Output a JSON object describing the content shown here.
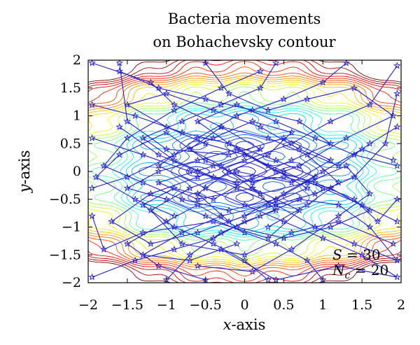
{
  "chart_data": {
    "type": "scatter",
    "title_lines": [
      "Bacteria movements",
      "on Bohachevsky contour"
    ],
    "xlabel": {
      "var": "x",
      "suffix": "-axis"
    },
    "ylabel": {
      "var": "y",
      "suffix": "-axis"
    },
    "xlim": [
      -2,
      2
    ],
    "ylim": [
      -2,
      2
    ],
    "xticks": [
      -2,
      -1.5,
      -1,
      -0.5,
      0,
      0.5,
      1,
      1.5,
      2
    ],
    "yticks": [
      -2,
      -1.5,
      -1,
      -0.5,
      0,
      0.5,
      1,
      1.5,
      2
    ],
    "xtick_labels": [
      "−2",
      "−1.5",
      "−1",
      "−0.5",
      "0",
      "0.5",
      "1",
      "1.5",
      "2"
    ],
    "ytick_labels": [
      "−2",
      "−1.5",
      "−1",
      "−0.5",
      "0",
      "0.5",
      "1",
      "1.5",
      "2"
    ],
    "grid": false,
    "legend": "none",
    "background": "contour",
    "contour_function": "Bohachevsky",
    "contour_colormap": "jet",
    "path_color": "#1f1fd0",
    "marker": "star",
    "annotations": [
      {
        "var": "S",
        "sub": "",
        "text": " = 30",
        "position": "bottom-right"
      },
      {
        "var": "N",
        "sub": "c",
        "text": " = 20",
        "position": "bottom-right"
      }
    ],
    "paths": [
      [
        [
          -1.95,
          1.95
        ],
        [
          -1.2,
          1.6
        ],
        [
          -0.9,
          1.2
        ],
        [
          -0.3,
          0.8
        ],
        [
          0.2,
          0.4
        ],
        [
          -0.4,
          0.1
        ],
        [
          -1.1,
          -0.2
        ],
        [
          -0.6,
          -0.5
        ],
        [
          0.1,
          -0.3
        ],
        [
          0.7,
          -0.7
        ],
        [
          0.3,
          -1.2
        ],
        [
          -0.4,
          -0.9
        ],
        [
          -1.3,
          -1.1
        ],
        [
          -1.8,
          -1.4
        ],
        [
          -1.95,
          -0.8
        ]
      ],
      [
        [
          -1.6,
          1.95
        ],
        [
          -1.5,
          0.9
        ],
        [
          -1.0,
          0.4
        ],
        [
          -0.2,
          0.3
        ],
        [
          0.5,
          0.6
        ],
        [
          1.1,
          0.2
        ],
        [
          0.6,
          -0.2
        ],
        [
          -0.1,
          0.0
        ],
        [
          -0.7,
          -0.3
        ],
        [
          -1.2,
          -0.7
        ],
        [
          -0.8,
          -1.3
        ],
        [
          0.0,
          -1.5
        ],
        [
          0.6,
          -1.1
        ],
        [
          1.2,
          -0.9
        ],
        [
          1.9,
          -1.3
        ]
      ],
      [
        [
          -0.5,
          1.95
        ],
        [
          -0.2,
          1.4
        ],
        [
          0.3,
          1.1
        ],
        [
          0.8,
          1.3
        ],
        [
          1.4,
          1.5
        ],
        [
          1.9,
          1.0
        ],
        [
          1.3,
          0.6
        ],
        [
          0.7,
          0.1
        ],
        [
          0.1,
          -0.2
        ],
        [
          -0.5,
          0.2
        ],
        [
          -1.0,
          0.7
        ],
        [
          -1.6,
          0.3
        ],
        [
          -1.9,
          -0.1
        ],
        [
          -1.4,
          -0.5
        ],
        [
          -0.9,
          -0.8
        ]
      ],
      [
        [
          0.4,
          1.95
        ],
        [
          0.2,
          1.5
        ],
        [
          -0.3,
          1.2
        ],
        [
          -0.8,
          0.9
        ],
        [
          -1.3,
          0.6
        ],
        [
          -0.9,
          0.2
        ],
        [
          -0.4,
          -0.1
        ],
        [
          0.2,
          -0.4
        ],
        [
          0.8,
          -0.2
        ],
        [
          1.3,
          0.1
        ],
        [
          1.6,
          -0.4
        ],
        [
          1.2,
          -0.8
        ],
        [
          0.6,
          -1.4
        ],
        [
          0.1,
          -1.8
        ],
        [
          -0.6,
          -1.7
        ]
      ],
      [
        [
          1.3,
          1.95
        ],
        [
          1.0,
          1.6
        ],
        [
          0.5,
          1.3
        ],
        [
          -0.1,
          1.0
        ],
        [
          -0.6,
          0.6
        ],
        [
          -1.1,
          0.1
        ],
        [
          -0.5,
          -0.3
        ],
        [
          0.0,
          -0.6
        ],
        [
          0.5,
          -0.9
        ],
        [
          1.0,
          -1.2
        ],
        [
          1.5,
          -1.5
        ],
        [
          1.95,
          -1.9
        ],
        [
          1.2,
          -1.7
        ],
        [
          0.4,
          -1.95
        ],
        [
          -0.3,
          -1.4
        ]
      ],
      [
        [
          1.95,
          1.9
        ],
        [
          1.6,
          1.2
        ],
        [
          1.1,
          0.9
        ],
        [
          0.6,
          0.5
        ],
        [
          0.0,
          0.2
        ],
        [
          -0.6,
          -0.1
        ],
        [
          -1.2,
          -0.4
        ],
        [
          -1.7,
          -0.9
        ],
        [
          -1.2,
          -1.3
        ],
        [
          -0.6,
          -1.1
        ],
        [
          0.0,
          -0.8
        ],
        [
          0.5,
          -0.4
        ],
        [
          1.0,
          0.0
        ],
        [
          1.5,
          0.4
        ],
        [
          1.9,
          0.2
        ]
      ],
      [
        [
          -1.95,
          1.2
        ],
        [
          -1.4,
          1.0
        ],
        [
          -0.8,
          0.7
        ],
        [
          -0.2,
          0.5
        ],
        [
          0.4,
          0.2
        ],
        [
          0.9,
          -0.1
        ],
        [
          0.4,
          -0.5
        ],
        [
          -0.2,
          -0.7
        ],
        [
          -0.8,
          -0.5
        ],
        [
          -1.3,
          -0.2
        ],
        [
          -1.8,
          0.1
        ],
        [
          -1.5,
          0.6
        ],
        [
          -0.9,
          1.1
        ],
        [
          -0.3,
          1.5
        ],
        [
          0.2,
          1.8
        ]
      ],
      [
        [
          -1.95,
          0.6
        ],
        [
          -1.3,
          0.3
        ],
        [
          -0.7,
          0.0
        ],
        [
          -0.1,
          -0.2
        ],
        [
          0.5,
          -0.1
        ],
        [
          1.1,
          -0.3
        ],
        [
          1.6,
          -0.7
        ],
        [
          1.1,
          -1.0
        ],
        [
          0.5,
          -1.2
        ],
        [
          -0.1,
          -1.0
        ],
        [
          -0.6,
          -0.6
        ],
        [
          -1.0,
          -0.9
        ],
        [
          -1.5,
          -1.3
        ],
        [
          -1.1,
          -1.7
        ],
        [
          -0.5,
          -1.95
        ]
      ],
      [
        [
          -1.95,
          -0.3
        ],
        [
          -1.5,
          -0.1
        ],
        [
          -0.9,
          0.3
        ],
        [
          -0.4,
          0.6
        ],
        [
          0.1,
          0.9
        ],
        [
          0.6,
          0.7
        ],
        [
          0.3,
          0.3
        ],
        [
          -0.2,
          0.0
        ],
        [
          -0.6,
          -0.4
        ],
        [
          -0.2,
          -0.9
        ],
        [
          0.4,
          -0.6
        ],
        [
          0.9,
          -0.4
        ],
        [
          1.4,
          -0.1
        ],
        [
          1.8,
          0.5
        ],
        [
          1.95,
          1.4
        ]
      ],
      [
        [
          -1.95,
          -1.9
        ],
        [
          -1.4,
          -1.6
        ],
        [
          -0.9,
          -1.4
        ],
        [
          -0.4,
          -1.2
        ],
        [
          0.0,
          -0.9
        ],
        [
          0.4,
          -0.7
        ],
        [
          0.1,
          -0.3
        ],
        [
          -0.3,
          0.1
        ],
        [
          -0.7,
          0.4
        ],
        [
          -0.3,
          0.8
        ],
        [
          0.3,
          0.6
        ],
        [
          0.8,
          0.3
        ],
        [
          1.2,
          -0.2
        ],
        [
          0.8,
          -0.6
        ],
        [
          0.3,
          -1.0
        ]
      ],
      [
        [
          -1.0,
          -1.95
        ],
        [
          -0.7,
          -1.5
        ],
        [
          -0.3,
          -1.1
        ],
        [
          0.2,
          -0.8
        ],
        [
          0.7,
          -0.5
        ],
        [
          1.2,
          -0.6
        ],
        [
          1.6,
          -1.0
        ],
        [
          1.95,
          -1.6
        ],
        [
          1.4,
          -1.3
        ],
        [
          0.9,
          -1.0
        ],
        [
          0.4,
          -0.6
        ],
        [
          -0.1,
          -0.3
        ],
        [
          -0.6,
          0.0
        ],
        [
          -1.1,
          0.3
        ],
        [
          -1.6,
          0.8
        ]
      ],
      [
        [
          0.3,
          -1.95
        ],
        [
          0.0,
          -1.6
        ],
        [
          -0.4,
          -1.3
        ],
        [
          -0.9,
          -1.0
        ],
        [
          -1.3,
          -0.6
        ],
        [
          -0.9,
          -0.3
        ],
        [
          -0.4,
          -0.5
        ],
        [
          0.1,
          -0.1
        ],
        [
          0.6,
          0.2
        ],
        [
          1.1,
          0.5
        ],
        [
          0.7,
          0.9
        ],
        [
          0.1,
          1.1
        ],
        [
          -0.5,
          1.3
        ],
        [
          -1.1,
          1.5
        ],
        [
          -1.6,
          1.8
        ]
      ],
      [
        [
          1.0,
          -1.95
        ],
        [
          0.8,
          -1.6
        ],
        [
          0.4,
          -1.3
        ],
        [
          0.0,
          -1.1
        ],
        [
          -0.5,
          -0.8
        ],
        [
          -1.0,
          -0.5
        ],
        [
          -1.5,
          -0.3
        ],
        [
          -1.1,
          0.0
        ],
        [
          -0.6,
          0.2
        ],
        [
          -0.1,
          0.4
        ],
        [
          0.4,
          0.0
        ],
        [
          0.9,
          -0.2
        ],
        [
          1.4,
          -0.5
        ],
        [
          1.7,
          -0.9
        ],
        [
          1.95,
          -0.5
        ]
      ],
      [
        [
          1.95,
          -0.9
        ],
        [
          1.5,
          -0.6
        ],
        [
          1.0,
          -0.3
        ],
        [
          0.5,
          0.0
        ],
        [
          0.0,
          0.3
        ],
        [
          -0.5,
          0.5
        ],
        [
          -1.0,
          0.8
        ],
        [
          -1.5,
          1.2
        ],
        [
          -1.0,
          1.4
        ],
        [
          -0.4,
          1.1
        ],
        [
          0.2,
          0.8
        ],
        [
          0.7,
          0.4
        ],
        [
          1.2,
          0.1
        ],
        [
          1.6,
          0.5
        ],
        [
          1.95,
          0.8
        ]
      ],
      [
        [
          1.95,
          0.1
        ],
        [
          1.4,
          0.3
        ],
        [
          0.9,
          0.6
        ],
        [
          0.4,
          0.9
        ],
        [
          -0.1,
          1.2
        ],
        [
          -0.6,
          0.9
        ],
        [
          -0.2,
          0.5
        ],
        [
          0.3,
          0.1
        ],
        [
          0.8,
          -0.3
        ],
        [
          0.3,
          -0.6
        ],
        [
          -0.3,
          -0.8
        ],
        [
          -0.8,
          -1.1
        ],
        [
          -1.3,
          -1.5
        ],
        [
          -0.7,
          -1.6
        ],
        [
          -0.1,
          -1.3
        ]
      ]
    ]
  }
}
